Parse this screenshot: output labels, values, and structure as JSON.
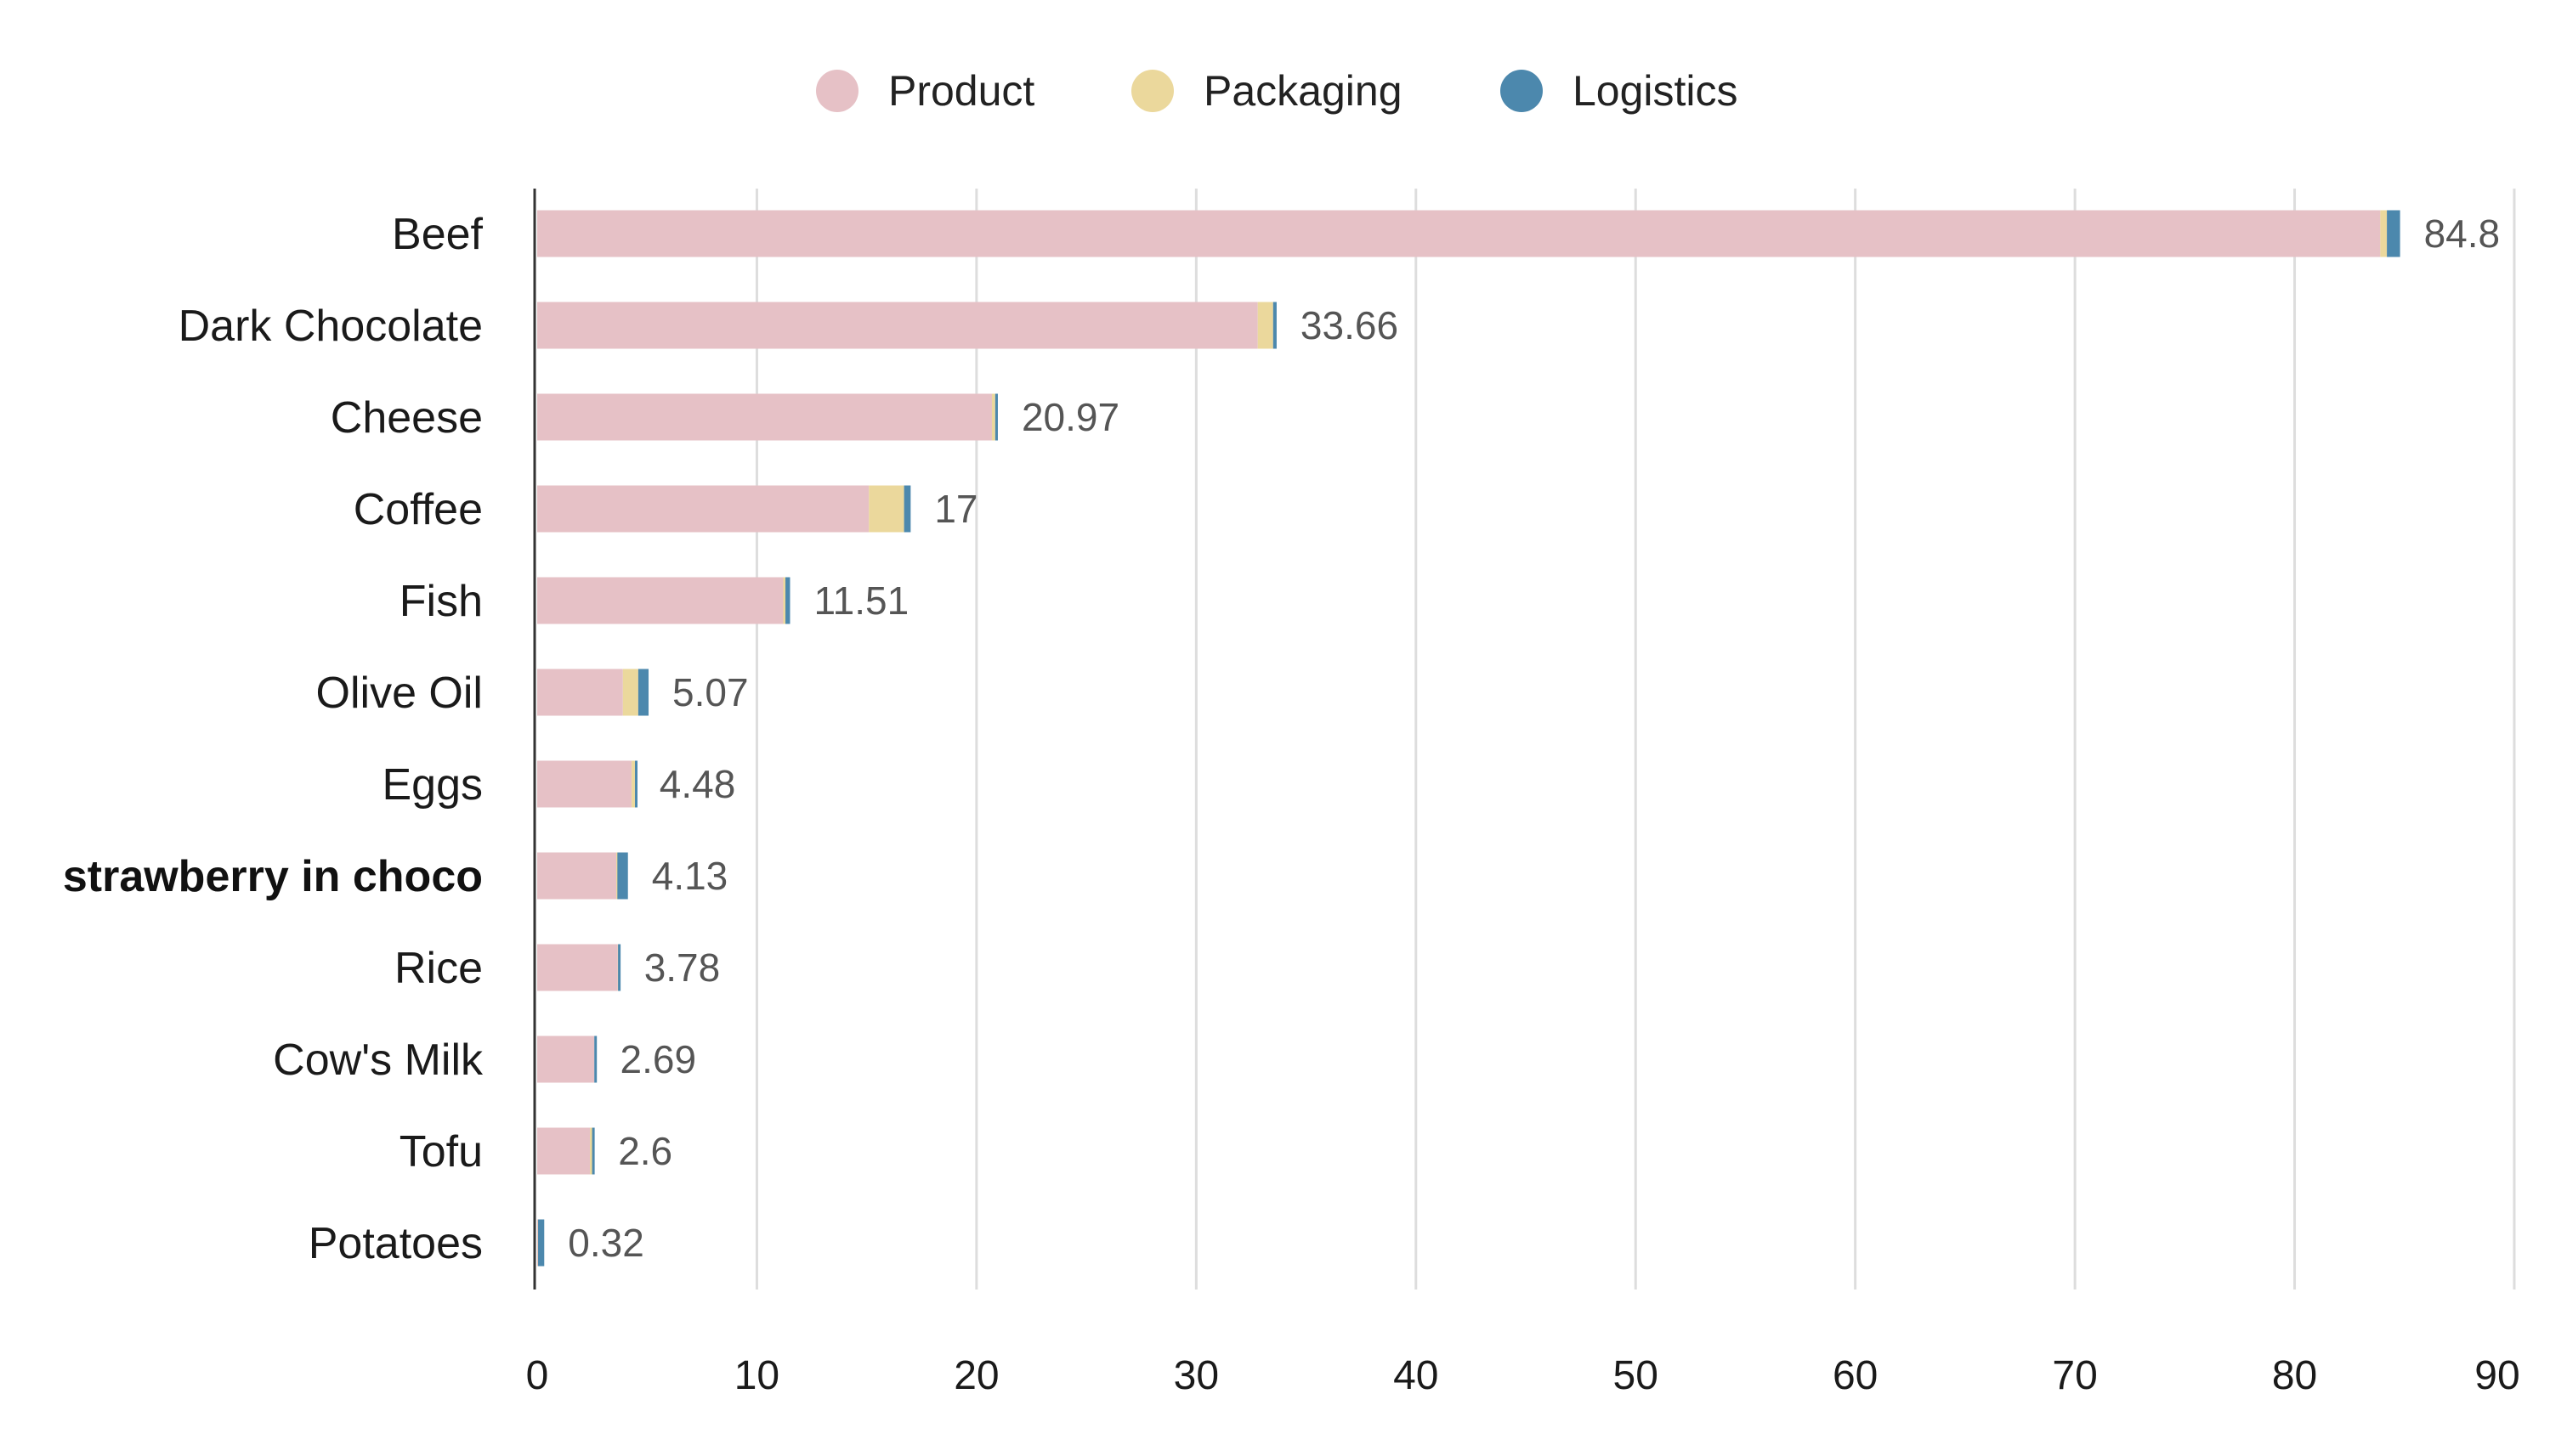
{
  "chart_data": {
    "type": "bar",
    "orientation": "horizontal",
    "stacked": true,
    "title": "",
    "xlabel": "",
    "ylabel": "",
    "xlim": [
      0,
      90
    ],
    "x_ticks": [
      "0",
      "10",
      "20",
      "30",
      "40",
      "50",
      "60",
      "70",
      "80",
      "90"
    ],
    "grid": "vertical",
    "legend_position": "top-center",
    "categories": [
      "Beef",
      "Dark Chocolate",
      "Cheese",
      "Coffee",
      "Fish",
      "Olive Oil",
      "Eggs",
      "strawberry in choco",
      "Rice",
      "Cow's Milk",
      "Tofu",
      "Potatoes"
    ],
    "highlighted_category": "strawberry in choco",
    "totals": [
      "84.8",
      "33.66",
      "20.97",
      "17",
      "11.51",
      "5.07",
      "4.48",
      "4.13",
      "3.78",
      "2.69",
      "2.6",
      "0.32"
    ],
    "series": [
      {
        "name": "Product",
        "color": "#e6c1c6",
        "values": [
          83.9,
          32.8,
          20.7,
          15.1,
          11.2,
          3.9,
          4.3,
          3.6,
          3.67,
          2.6,
          2.4,
          0.03
        ]
      },
      {
        "name": "Packaging",
        "color": "#ebd89c",
        "values": [
          0.3,
          0.7,
          0.15,
          1.6,
          0.1,
          0.7,
          0.15,
          0.05,
          0.01,
          0.0,
          0.1,
          0.01
        ]
      },
      {
        "name": "Logistics",
        "color": "#4c88ad",
        "values": [
          0.6,
          0.16,
          0.12,
          0.3,
          0.21,
          0.47,
          0.03,
          0.48,
          0.1,
          0.09,
          0.1,
          0.28
        ]
      }
    ]
  }
}
